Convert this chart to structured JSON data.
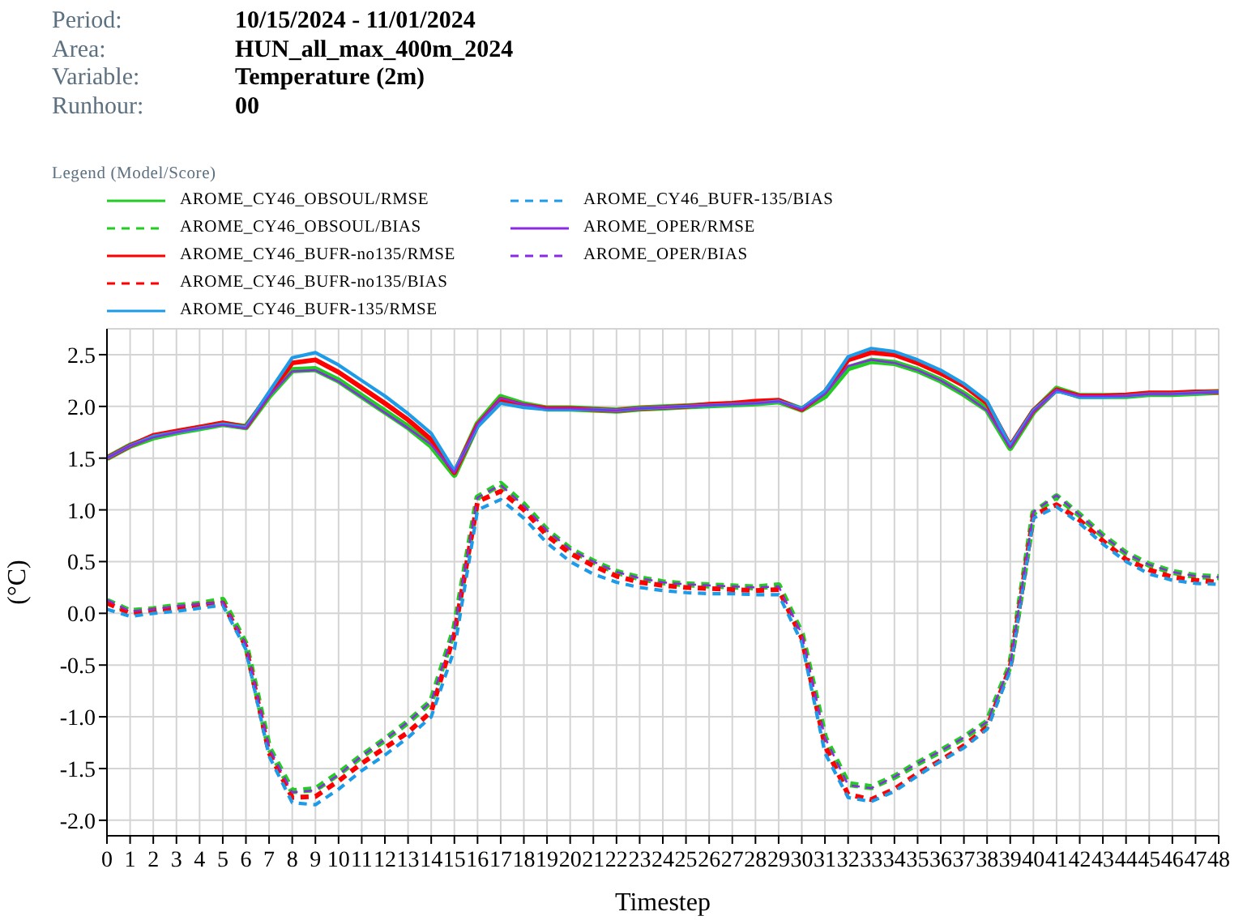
{
  "chart_data": {
    "type": "line",
    "xlabel": "Timestep",
    "ylabel": "(°C)",
    "legend_title": "Legend (Model/Score)",
    "legend": "top left",
    "grid": true,
    "marker": "none",
    "annotations": [
      "Period:",
      "10/15/2024 - 11/01/2024",
      "Area:",
      "HUN_all_max_400m_2024",
      "Variable:",
      "Temperature (2m)",
      "Runhour:",
      "00"
    ],
    "x": [
      0,
      1,
      2,
      3,
      4,
      5,
      6,
      7,
      8,
      9,
      10,
      11,
      12,
      13,
      14,
      15,
      16,
      17,
      18,
      19,
      20,
      21,
      22,
      23,
      24,
      25,
      26,
      27,
      28,
      29,
      30,
      31,
      32,
      33,
      34,
      35,
      36,
      37,
      38,
      39,
      40,
      41,
      42,
      43,
      44,
      45,
      46,
      47,
      48
    ],
    "xlim": [
      0,
      48
    ],
    "xticks": [
      0,
      1,
      2,
      3,
      4,
      5,
      6,
      7,
      8,
      9,
      10,
      11,
      12,
      13,
      14,
      15,
      16,
      17,
      18,
      19,
      20,
      21,
      22,
      23,
      24,
      25,
      26,
      27,
      28,
      29,
      30,
      31,
      32,
      33,
      34,
      35,
      36,
      37,
      38,
      39,
      40,
      41,
      42,
      43,
      44,
      45,
      46,
      47,
      48
    ],
    "ylim": [
      -2.15,
      2.75
    ],
    "yticks": [
      {
        "value": -2,
        "label": "-2.0"
      },
      {
        "value": -1.5,
        "label": "-1.5"
      },
      {
        "value": -1,
        "label": "-1.0"
      },
      {
        "value": -0.5,
        "label": "-0.5"
      },
      {
        "value": 0,
        "label": "0.0"
      },
      {
        "value": 0.5,
        "label": "0.5"
      },
      {
        "value": 1,
        "label": "1.0"
      },
      {
        "value": 1.5,
        "label": "1.5"
      },
      {
        "value": 2,
        "label": "2.0"
      },
      {
        "value": 2.5,
        "label": "2.5"
      }
    ],
    "series": [
      {
        "name": "AROME_CY46_OBSOUL/RMSE",
        "color": "#22cc22",
        "line_style": "solid",
        "values": [
          1.5,
          1.62,
          1.7,
          1.75,
          1.79,
          1.83,
          1.8,
          2.1,
          2.35,
          2.36,
          2.25,
          2.1,
          1.95,
          1.8,
          1.62,
          1.34,
          1.83,
          2.09,
          2.02,
          1.98,
          1.98,
          1.97,
          1.96,
          1.98,
          1.99,
          2.0,
          2.01,
          2.02,
          2.03,
          2.05,
          1.97,
          2.1,
          2.37,
          2.44,
          2.42,
          2.35,
          2.25,
          2.12,
          1.97,
          1.6,
          1.95,
          2.17,
          2.1,
          2.1,
          2.1,
          2.12,
          2.12,
          2.13,
          2.14
        ]
      },
      {
        "name": "AROME_CY46_OBSOUL/BIAS",
        "color": "#22cc22",
        "line_style": "dashed",
        "values": [
          0.12,
          0.02,
          0.04,
          0.07,
          0.09,
          0.13,
          -0.3,
          -1.3,
          -1.72,
          -1.7,
          -1.55,
          -1.38,
          -1.22,
          -1.05,
          -0.85,
          -0.15,
          1.12,
          1.25,
          1.05,
          0.8,
          0.62,
          0.5,
          0.4,
          0.34,
          0.3,
          0.28,
          0.27,
          0.26,
          0.25,
          0.27,
          -0.2,
          -1.2,
          -1.65,
          -1.68,
          -1.58,
          -1.45,
          -1.33,
          -1.2,
          -1.05,
          -0.5,
          0.97,
          1.13,
          0.95,
          0.75,
          0.58,
          0.47,
          0.4,
          0.36,
          0.35
        ]
      },
      {
        "name": "AROME_CY46_BUFR-no135/RMSE",
        "color": "#ff0000",
        "line_style": "solid",
        "values": [
          1.5,
          1.62,
          1.72,
          1.76,
          1.8,
          1.84,
          1.8,
          2.12,
          2.42,
          2.45,
          2.33,
          2.18,
          2.03,
          1.87,
          1.68,
          1.36,
          1.82,
          2.07,
          2.01,
          1.98,
          1.98,
          1.97,
          1.96,
          1.98,
          1.99,
          2.0,
          2.02,
          2.03,
          2.05,
          2.06,
          1.97,
          2.14,
          2.45,
          2.52,
          2.5,
          2.42,
          2.32,
          2.2,
          2.03,
          1.62,
          1.96,
          2.16,
          2.1,
          2.1,
          2.11,
          2.13,
          2.13,
          2.14,
          2.14
        ]
      },
      {
        "name": "AROME_CY46_BUFR-no135/BIAS",
        "color": "#ff0000",
        "line_style": "dashed",
        "values": [
          0.1,
          0.0,
          0.03,
          0.05,
          0.08,
          0.1,
          -0.32,
          -1.35,
          -1.78,
          -1.77,
          -1.62,
          -1.45,
          -1.3,
          -1.15,
          -0.95,
          -0.2,
          1.08,
          1.18,
          1.0,
          0.75,
          0.58,
          0.46,
          0.36,
          0.3,
          0.27,
          0.25,
          0.24,
          0.23,
          0.22,
          0.23,
          -0.24,
          -1.28,
          -1.75,
          -1.8,
          -1.7,
          -1.55,
          -1.42,
          -1.28,
          -1.1,
          -0.52,
          0.95,
          1.05,
          0.9,
          0.7,
          0.52,
          0.42,
          0.35,
          0.32,
          0.3
        ]
      },
      {
        "name": "AROME_CY46_BUFR-135/RMSE",
        "color": "#1e9be8",
        "line_style": "solid",
        "values": [
          1.5,
          1.62,
          1.71,
          1.75,
          1.79,
          1.83,
          1.8,
          2.14,
          2.47,
          2.52,
          2.4,
          2.25,
          2.1,
          1.93,
          1.74,
          1.38,
          1.8,
          2.03,
          1.99,
          1.97,
          1.97,
          1.97,
          1.96,
          1.98,
          1.99,
          2.0,
          2.01,
          2.02,
          2.03,
          2.05,
          1.98,
          2.15,
          2.48,
          2.56,
          2.53,
          2.45,
          2.35,
          2.22,
          2.05,
          1.62,
          1.96,
          2.15,
          2.09,
          2.09,
          2.1,
          2.12,
          2.12,
          2.13,
          2.14
        ]
      },
      {
        "name": "AROME_CY46_BUFR-135/BIAS",
        "color": "#1e9be8",
        "line_style": "dashed",
        "values": [
          0.04,
          -0.03,
          0.0,
          0.02,
          0.05,
          0.08,
          -0.35,
          -1.38,
          -1.83,
          -1.85,
          -1.7,
          -1.52,
          -1.37,
          -1.2,
          -1.0,
          -0.35,
          1.0,
          1.1,
          0.92,
          0.68,
          0.5,
          0.38,
          0.3,
          0.25,
          0.22,
          0.2,
          0.19,
          0.19,
          0.18,
          0.18,
          -0.28,
          -1.35,
          -1.78,
          -1.82,
          -1.72,
          -1.57,
          -1.43,
          -1.3,
          -1.12,
          -0.55,
          0.92,
          1.03,
          0.87,
          0.67,
          0.5,
          0.38,
          0.32,
          0.29,
          0.28
        ]
      },
      {
        "name": "AROME_OPER/RMSE",
        "color": "#8a2be2",
        "line_style": "solid",
        "values": [
          1.5,
          1.62,
          1.7,
          1.75,
          1.79,
          1.82,
          1.79,
          2.1,
          2.34,
          2.35,
          2.24,
          2.09,
          1.94,
          1.79,
          1.63,
          1.36,
          1.83,
          2.08,
          2.02,
          1.98,
          1.98,
          1.97,
          1.96,
          1.98,
          1.99,
          2.0,
          2.01,
          2.02,
          2.03,
          2.05,
          1.97,
          2.12,
          2.39,
          2.45,
          2.42,
          2.35,
          2.25,
          2.12,
          1.96,
          1.6,
          1.95,
          2.16,
          2.1,
          2.1,
          2.1,
          2.12,
          2.12,
          2.13,
          2.14
        ]
      },
      {
        "name": "AROME_OPER/BIAS",
        "color": "#8a2be2",
        "line_style": "dashed",
        "values": [
          0.13,
          0.02,
          0.04,
          0.07,
          0.09,
          0.11,
          -0.3,
          -1.3,
          -1.73,
          -1.71,
          -1.56,
          -1.38,
          -1.22,
          -1.05,
          -0.85,
          -0.15,
          1.12,
          1.24,
          1.04,
          0.8,
          0.62,
          0.5,
          0.4,
          0.34,
          0.3,
          0.28,
          0.27,
          0.26,
          0.25,
          0.26,
          -0.2,
          -1.2,
          -1.66,
          -1.69,
          -1.58,
          -1.45,
          -1.33,
          -1.2,
          -1.05,
          -0.5,
          0.98,
          1.14,
          0.95,
          0.75,
          0.58,
          0.47,
          0.4,
          0.36,
          0.35
        ]
      }
    ]
  }
}
